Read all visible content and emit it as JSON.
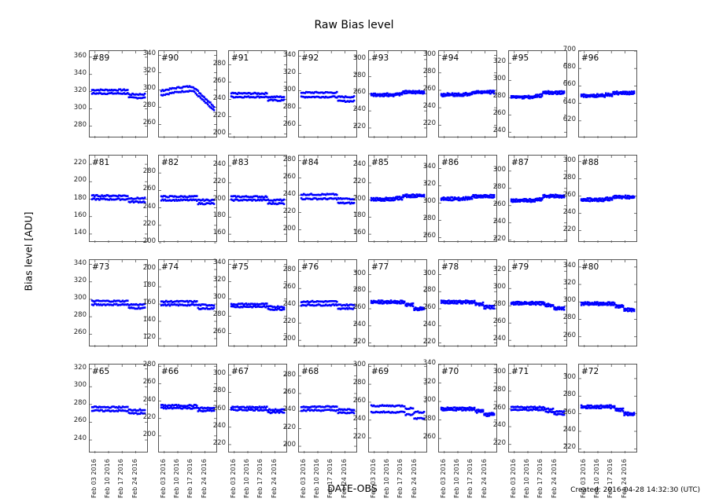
{
  "title": "Raw Bias level",
  "ylabel": "Bias level [ADU]",
  "xlabel": "DATE-OBS",
  "created": "Created: 2016-04-28 14:32:30 (UTC)",
  "colors": {
    "marker": "#0000ff",
    "axes": "#555555"
  },
  "x_ticks": [
    "Feb 03 2016",
    "Feb 10 2016",
    "Feb 17 2016",
    "Feb 24 2016"
  ],
  "chart_data": {
    "type": "scatter",
    "title": "Raw Bias level",
    "xlabel": "DATE-OBS",
    "ylabel": "Bias level [ADU]",
    "x_ticks": [
      "Feb 03 2016",
      "Feb 10 2016",
      "Feb 17 2016",
      "Feb 24 2016"
    ],
    "grid": false,
    "layout": "4 rows x 8 columns of subplots",
    "panels": [
      {
        "id": "#89",
        "row": 0,
        "col": 0,
        "ylim": [
          266,
          367
        ],
        "yticks": [
          280,
          300,
          320,
          340,
          360
        ],
        "level": 320,
        "bands": [
          2,
          -2
        ],
        "profile": "dropEnd",
        "drop": 5
      },
      {
        "id": "#90",
        "row": 0,
        "col": 1,
        "ylim": [
          244,
          345
        ],
        "yticks": [
          260,
          280,
          300,
          320,
          340
        ],
        "level": 296,
        "bands": [
          3,
          -2
        ],
        "profile": "arch",
        "drop": 18
      },
      {
        "id": "#91",
        "row": 0,
        "col": 2,
        "ylim": [
          195,
          296
        ],
        "yticks": [
          200,
          220,
          240,
          260,
          280
        ],
        "level": 245,
        "bands": [
          2,
          -2
        ],
        "profile": "dropEnd",
        "drop": 4
      },
      {
        "id": "#92",
        "row": 0,
        "col": 3,
        "ylim": [
          245,
          346
        ],
        "yticks": [
          260,
          280,
          300,
          320,
          340
        ],
        "level": 296,
        "bands": [
          2,
          -3
        ],
        "profile": "dropEnd",
        "drop": 5
      },
      {
        "id": "#93",
        "row": 0,
        "col": 4,
        "ylim": [
          208,
          310
        ],
        "yticks": [
          220,
          240,
          260,
          280,
          300
        ],
        "level": 259,
        "bands": [
          1,
          -1
        ],
        "profile": "riseEnd",
        "drop": -3
      },
      {
        "id": "#94",
        "row": 0,
        "col": 5,
        "ylim": [
          205,
          305
        ],
        "yticks": [
          220,
          240,
          260,
          280,
          300
        ],
        "level": 255,
        "bands": [
          1,
          -1
        ],
        "profile": "riseEnd",
        "drop": -3
      },
      {
        "id": "#95",
        "row": 0,
        "col": 6,
        "ylim": [
          233,
          334
        ],
        "yticks": [
          240,
          260,
          280,
          300,
          320
        ],
        "level": 281,
        "bands": [
          1,
          -1
        ],
        "profile": "riseEnd",
        "drop": -5
      },
      {
        "id": "#96",
        "row": 0,
        "col": 7,
        "ylim": [
          600,
          700
        ],
        "yticks": [
          620,
          640,
          660,
          680,
          700
        ],
        "level": 649,
        "bands": [
          1,
          -1
        ],
        "profile": "riseEnd",
        "drop": -3
      },
      {
        "id": "#81",
        "row": 1,
        "col": 0,
        "ylim": [
          130,
          230
        ],
        "yticks": [
          140,
          160,
          180,
          200,
          220
        ],
        "level": 182,
        "bands": [
          2,
          -2
        ],
        "profile": "dropEnd",
        "drop": 3
      },
      {
        "id": "#82",
        "row": 1,
        "col": 1,
        "ylim": [
          200,
          300
        ],
        "yticks": [
          200,
          220,
          240,
          260,
          280
        ],
        "level": 251,
        "bands": [
          2,
          -2
        ],
        "profile": "dropEnd",
        "drop": 4
      },
      {
        "id": "#83",
        "row": 1,
        "col": 2,
        "ylim": [
          150,
          252
        ],
        "yticks": [
          160,
          180,
          200,
          220,
          240
        ],
        "level": 202,
        "bands": [
          2,
          -2
        ],
        "profile": "dropEnd",
        "drop": 4
      },
      {
        "id": "#84",
        "row": 1,
        "col": 3,
        "ylim": [
          185,
          286
        ],
        "yticks": [
          200,
          220,
          240,
          260,
          280
        ],
        "level": 239,
        "bands": [
          2,
          -3
        ],
        "profile": "dropEnd",
        "drop": 5
      },
      {
        "id": "#85",
        "row": 1,
        "col": 4,
        "ylim": [
          150,
          252
        ],
        "yticks": [
          160,
          180,
          200,
          220,
          240
        ],
        "level": 201,
        "bands": [
          1,
          -1
        ],
        "profile": "riseEnd",
        "drop": -4
      },
      {
        "id": "#86",
        "row": 1,
        "col": 5,
        "ylim": [
          254,
          355
        ],
        "yticks": [
          260,
          280,
          300,
          320,
          340
        ],
        "level": 305,
        "bands": [
          1,
          -1
        ],
        "profile": "riseEnd",
        "drop": -3
      },
      {
        "id": "#87",
        "row": 1,
        "col": 6,
        "ylim": [
          217,
          318
        ],
        "yticks": [
          220,
          240,
          260,
          280,
          300
        ],
        "level": 266,
        "bands": [
          1,
          -1
        ],
        "profile": "riseEnd",
        "drop": -5
      },
      {
        "id": "#88",
        "row": 1,
        "col": 7,
        "ylim": [
          206,
          307
        ],
        "yticks": [
          220,
          240,
          260,
          280,
          300
        ],
        "level": 256,
        "bands": [
          1,
          -1
        ],
        "profile": "riseEnd",
        "drop": -3
      },
      {
        "id": "#73",
        "row": 2,
        "col": 0,
        "ylim": [
          245,
          345
        ],
        "yticks": [
          260,
          280,
          300,
          320,
          340
        ],
        "level": 296,
        "bands": [
          2,
          -2
        ],
        "profile": "dropEnd",
        "drop": 4
      },
      {
        "id": "#74",
        "row": 2,
        "col": 1,
        "ylim": [
          110,
          211
        ],
        "yticks": [
          120,
          140,
          160,
          180,
          200
        ],
        "level": 161,
        "bands": [
          2,
          -2
        ],
        "profile": "dropEnd",
        "drop": 4
      },
      {
        "id": "#75",
        "row": 2,
        "col": 2,
        "ylim": [
          244,
          345
        ],
        "yticks": [
          260,
          280,
          300,
          320,
          340
        ],
        "level": 293,
        "bands": [
          1,
          -2
        ],
        "profile": "dropEnd",
        "drop": 3
      },
      {
        "id": "#76",
        "row": 2,
        "col": 3,
        "ylim": [
          192,
          293
        ],
        "yticks": [
          200,
          220,
          240,
          260,
          280
        ],
        "level": 243,
        "bands": [
          2,
          -2
        ],
        "profile": "dropEnd",
        "drop": 4
      },
      {
        "id": "#77",
        "row": 2,
        "col": 4,
        "ylim": [
          215,
          317
        ],
        "yticks": [
          220,
          240,
          260,
          280,
          300
        ],
        "level": 268,
        "bands": [
          1,
          -1
        ],
        "profile": "step",
        "drop": 8
      },
      {
        "id": "#78",
        "row": 2,
        "col": 5,
        "ylim": [
          215,
          317
        ],
        "yticks": [
          220,
          240,
          260,
          280,
          300
        ],
        "level": 268,
        "bands": [
          1,
          -1
        ],
        "profile": "step",
        "drop": 6
      },
      {
        "id": "#79",
        "row": 2,
        "col": 6,
        "ylim": [
          232,
          333
        ],
        "yticks": [
          240,
          260,
          280,
          300,
          320
        ],
        "level": 283,
        "bands": [
          1,
          -1
        ],
        "profile": "step",
        "drop": 6
      },
      {
        "id": "#80",
        "row": 2,
        "col": 7,
        "ylim": [
          248,
          348
        ],
        "yticks": [
          260,
          280,
          300,
          320,
          340
        ],
        "level": 298,
        "bands": [
          1,
          -1
        ],
        "profile": "step",
        "drop": 7
      },
      {
        "id": "#65",
        "row": 3,
        "col": 0,
        "ylim": [
          225,
          325
        ],
        "yticks": [
          240,
          260,
          280,
          300,
          320
        ],
        "level": 275,
        "bands": [
          2,
          -2
        ],
        "profile": "dropEnd",
        "drop": 3
      },
      {
        "id": "#66",
        "row": 3,
        "col": 1,
        "ylim": [
          180,
          282
        ],
        "yticks": [
          200,
          220,
          240,
          260,
          280
        ],
        "level": 233,
        "bands": [
          2,
          -1
        ],
        "profile": "dropEnd",
        "drop": 3
      },
      {
        "id": "#67",
        "row": 3,
        "col": 2,
        "ylim": [
          210,
          312
        ],
        "yticks": [
          220,
          240,
          260,
          280,
          300
        ],
        "level": 261,
        "bands": [
          2,
          -1
        ],
        "profile": "dropEnd",
        "drop": 3
      },
      {
        "id": "#68",
        "row": 3,
        "col": 3,
        "ylim": [
          192,
          293
        ],
        "yticks": [
          200,
          220,
          240,
          260,
          280
        ],
        "level": 243,
        "bands": [
          2,
          -2
        ],
        "profile": "dropEnd",
        "drop": 3
      },
      {
        "id": "#69",
        "row": 3,
        "col": 4,
        "ylim": [
          203,
          302
        ],
        "yticks": [
          220,
          240,
          260,
          280,
          300
        ],
        "level": 253,
        "bands": [
          3,
          -4
        ],
        "profile": "step",
        "drop": 7
      },
      {
        "id": "#70",
        "row": 3,
        "col": 5,
        "ylim": [
          244,
          340
        ],
        "yticks": [
          260,
          280,
          300,
          320,
          340
        ],
        "level": 292,
        "bands": [
          1,
          -1
        ],
        "profile": "step",
        "drop": 6
      },
      {
        "id": "#71",
        "row": 3,
        "col": 6,
        "ylim": [
          210,
          310
        ],
        "yticks": [
          220,
          240,
          260,
          280,
          300
        ],
        "level": 261,
        "bands": [
          1,
          -2
        ],
        "profile": "step",
        "drop": 5
      },
      {
        "id": "#72",
        "row": 3,
        "col": 7,
        "ylim": [
          215,
          316
        ],
        "yticks": [
          220,
          240,
          260,
          280,
          300
        ],
        "level": 268,
        "bands": [
          1,
          -1
        ],
        "profile": "step",
        "drop": 8
      }
    ]
  }
}
